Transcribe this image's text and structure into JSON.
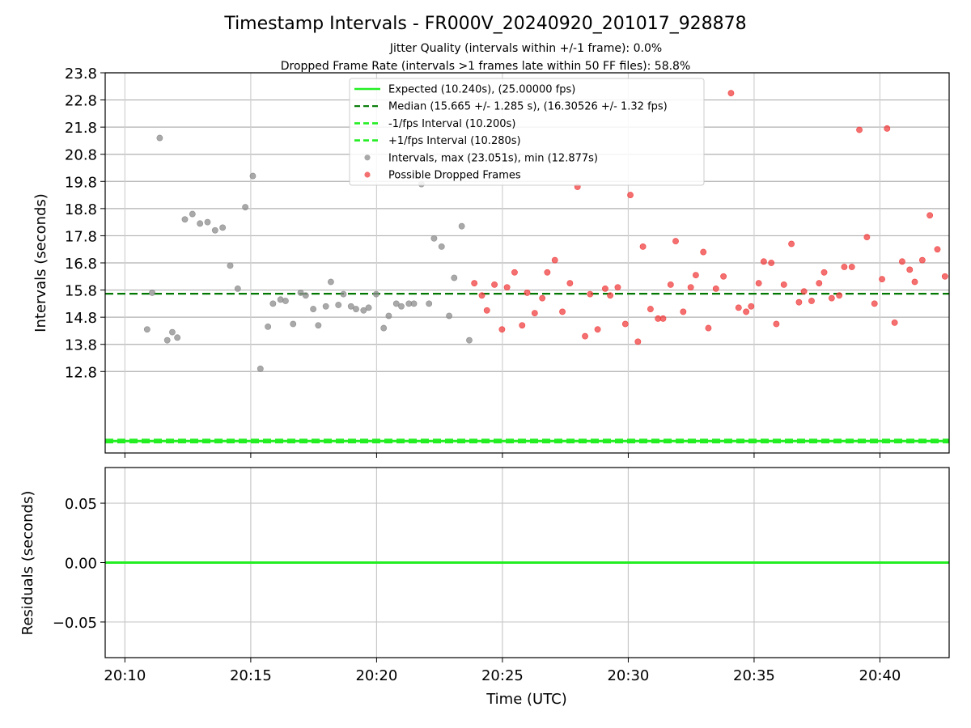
{
  "chart_data": [
    {
      "type": "scatter",
      "title": "Timestamp Intervals - FR000V_20240920_201017_928878",
      "subtitle_1": "Jitter Quality (intervals within +/-1 frame): 0.0%",
      "subtitle_2": "Dropped Frame Rate (intervals >1 frames late within 50 FF files): 58.8%",
      "xlabel": "",
      "ylabel": "Intervals (seconds)",
      "xlim": [
        "20:09:13",
        "20:42:45"
      ],
      "ylim": [
        9.8,
        23.8
      ],
      "y_ticks": [
        12.8,
        13.8,
        14.8,
        15.8,
        16.8,
        17.8,
        18.8,
        19.8,
        20.8,
        21.8,
        22.8,
        23.8
      ],
      "y_tick_labels": [
        "12.8",
        "13.8",
        "14.8",
        "15.8",
        "16.8",
        "17.8",
        "18.8",
        "19.8",
        "20.8",
        "21.8",
        "22.8",
        "23.8"
      ],
      "x_ticks": [
        "20:10",
        "20:15",
        "20:20",
        "20:25",
        "20:30",
        "20:35",
        "20:40"
      ],
      "grid": true,
      "legend_position": "top-center",
      "hlines": [
        {
          "name": "Expected (10.240s), (25.00000 fps)",
          "y": 10.24,
          "color": "#22ee22",
          "style": "solid"
        },
        {
          "name": "Median (15.665 +/- 1.285 s), (16.30526 +/- 1.32 fps)",
          "y": 15.665,
          "color": "#007700",
          "style": "dashed"
        },
        {
          "name": "-1/fps Interval (10.200s)",
          "y": 10.2,
          "color": "#22ee22",
          "style": "dashed"
        },
        {
          "name": "+1/fps Interval (10.280s)",
          "y": 10.28,
          "color": "#22ee22",
          "style": "dashed"
        }
      ],
      "series": [
        {
          "name": "Intervals, max (23.051s), min (12.877s)",
          "color": "#8c8c8c",
          "points": [
            [
              "20:10:53",
              14.35
            ],
            [
              "20:11:05",
              15.7
            ],
            [
              "20:11:23",
              21.4
            ],
            [
              "20:11:41",
              13.95
            ],
            [
              "20:11:53",
              14.25
            ],
            [
              "20:12:05",
              14.05
            ],
            [
              "20:12:23",
              18.4
            ],
            [
              "20:12:41",
              18.6
            ],
            [
              "20:12:59",
              18.25
            ],
            [
              "20:13:17",
              18.3
            ],
            [
              "20:13:35",
              18.0
            ],
            [
              "20:13:53",
              18.1
            ],
            [
              "20:14:11",
              16.7
            ],
            [
              "20:14:29",
              15.85
            ],
            [
              "20:14:47",
              18.85
            ],
            [
              "20:15:05",
              20.0
            ],
            [
              "20:15:23",
              12.9
            ],
            [
              "20:15:41",
              14.45
            ],
            [
              "20:15:53",
              15.3
            ],
            [
              "20:16:11",
              15.45
            ],
            [
              "20:16:23",
              15.4
            ],
            [
              "20:16:41",
              14.55
            ],
            [
              "20:16:59",
              15.7
            ],
            [
              "20:17:11",
              15.6
            ],
            [
              "20:17:29",
              15.1
            ],
            [
              "20:17:41",
              14.5
            ],
            [
              "20:17:59",
              15.2
            ],
            [
              "20:18:11",
              16.1
            ],
            [
              "20:18:29",
              15.25
            ],
            [
              "20:18:41",
              15.65
            ],
            [
              "20:18:59",
              15.2
            ],
            [
              "20:19:11",
              15.1
            ],
            [
              "20:19:29",
              15.05
            ],
            [
              "20:19:41",
              15.15
            ],
            [
              "20:19:59",
              15.65
            ],
            [
              "20:20:17",
              14.4
            ],
            [
              "20:20:29",
              14.85
            ],
            [
              "20:20:47",
              15.3
            ],
            [
              "20:20:59",
              15.2
            ],
            [
              "20:21:17",
              15.3
            ],
            [
              "20:21:29",
              15.3
            ],
            [
              "20:21:47",
              19.7
            ],
            [
              "20:22:05",
              15.3
            ],
            [
              "20:22:17",
              17.7
            ],
            [
              "20:22:35",
              17.4
            ],
            [
              "20:22:53",
              14.85
            ],
            [
              "20:23:05",
              16.25
            ],
            [
              "20:23:23",
              18.15
            ],
            [
              "20:23:41",
              13.95
            ]
          ]
        },
        {
          "name": "Possible Dropped Frames",
          "color": "#f04040",
          "points": [
            [
              "20:23:53",
              16.05
            ],
            [
              "20:24:11",
              15.6
            ],
            [
              "20:24:23",
              15.05
            ],
            [
              "20:24:41",
              16.0
            ],
            [
              "20:24:59",
              14.35
            ],
            [
              "20:25:11",
              15.9
            ],
            [
              "20:25:29",
              16.45
            ],
            [
              "20:25:47",
              14.5
            ],
            [
              "20:25:59",
              15.7
            ],
            [
              "20:26:17",
              14.95
            ],
            [
              "20:26:35",
              15.5
            ],
            [
              "20:26:47",
              16.45
            ],
            [
              "20:27:05",
              16.9
            ],
            [
              "20:27:23",
              15.0
            ],
            [
              "20:27:41",
              16.05
            ],
            [
              "20:27:59",
              19.6
            ],
            [
              "20:28:17",
              14.1
            ],
            [
              "20:28:29",
              15.65
            ],
            [
              "20:28:47",
              14.35
            ],
            [
              "20:29:05",
              15.85
            ],
            [
              "20:29:17",
              15.6
            ],
            [
              "20:29:35",
              15.9
            ],
            [
              "20:29:53",
              14.55
            ],
            [
              "20:30:05",
              19.3
            ],
            [
              "20:30:23",
              13.9
            ],
            [
              "20:30:35",
              17.4
            ],
            [
              "20:30:53",
              15.1
            ],
            [
              "20:31:11",
              14.75
            ],
            [
              "20:31:23",
              14.75
            ],
            [
              "20:31:41",
              16.0
            ],
            [
              "20:31:53",
              17.6
            ],
            [
              "20:32:11",
              15.0
            ],
            [
              "20:32:29",
              15.9
            ],
            [
              "20:32:41",
              16.35
            ],
            [
              "20:32:59",
              17.2
            ],
            [
              "20:33:11",
              14.4
            ],
            [
              "20:33:29",
              15.85
            ],
            [
              "20:33:47",
              16.3
            ],
            [
              "20:34:05",
              23.05
            ],
            [
              "20:34:23",
              15.15
            ],
            [
              "20:34:41",
              15.0
            ],
            [
              "20:34:53",
              15.2
            ],
            [
              "20:35:11",
              16.05
            ],
            [
              "20:35:23",
              16.85
            ],
            [
              "20:35:41",
              16.8
            ],
            [
              "20:35:53",
              14.55
            ],
            [
              "20:36:11",
              16.0
            ],
            [
              "20:36:29",
              17.5
            ],
            [
              "20:36:47",
              15.35
            ],
            [
              "20:36:59",
              15.75
            ],
            [
              "20:37:17",
              15.4
            ],
            [
              "20:37:35",
              16.05
            ],
            [
              "20:37:47",
              16.45
            ],
            [
              "20:38:05",
              15.5
            ],
            [
              "20:38:23",
              15.6
            ],
            [
              "20:38:35",
              16.65
            ],
            [
              "20:38:53",
              16.65
            ],
            [
              "20:39:11",
              21.7
            ],
            [
              "20:39:29",
              17.75
            ],
            [
              "20:39:47",
              15.3
            ],
            [
              "20:40:05",
              16.2
            ],
            [
              "20:40:17",
              21.75
            ],
            [
              "20:40:35",
              14.6
            ],
            [
              "20:40:53",
              16.85
            ],
            [
              "20:41:11",
              16.55
            ],
            [
              "20:41:23",
              16.1
            ],
            [
              "20:41:41",
              16.9
            ],
            [
              "20:41:59",
              18.55
            ],
            [
              "20:42:17",
              17.3
            ],
            [
              "20:42:35",
              16.3
            ]
          ]
        }
      ]
    },
    {
      "type": "line",
      "xlabel": "Time (UTC)",
      "ylabel": "Residuals (seconds)",
      "xlim": [
        "20:09:13",
        "20:42:45"
      ],
      "ylim": [
        -0.08,
        0.08
      ],
      "y_ticks": [
        -0.05,
        0.0,
        0.05
      ],
      "y_tick_labels": [
        "−0.05",
        "0.00",
        "0.05"
      ],
      "x_ticks": [
        "20:10",
        "20:15",
        "20:20",
        "20:25",
        "20:30",
        "20:35",
        "20:40"
      ],
      "grid": true,
      "series": [
        {
          "color": "#22ee22",
          "x": [
            "20:09:13",
            "20:42:45"
          ],
          "values": [
            0.0,
            0.0
          ]
        }
      ]
    }
  ]
}
